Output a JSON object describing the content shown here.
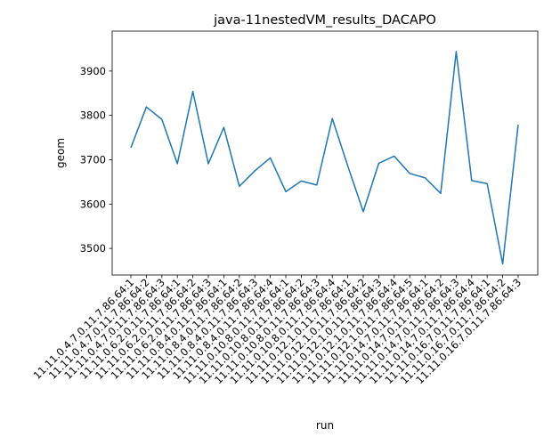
{
  "chart_data": {
    "type": "line",
    "title": "java-11nestedVM_results_DACAPO",
    "xlabel": "run",
    "ylabel": "geom",
    "ylim": [
      3440,
      3990
    ],
    "yticks": [
      3500,
      3600,
      3700,
      3800,
      3900
    ],
    "grid": false,
    "legend": "none",
    "series": [
      {
        "color": "#1f77b4",
        "values": [
          3727,
          3819,
          3791,
          3691,
          3854,
          3691,
          3773,
          3640,
          3675,
          3704,
          3628,
          3652,
          3643,
          3793,
          3686,
          3583,
          3692,
          3708,
          3669,
          3659,
          3624,
          3944,
          3653,
          3646,
          3465,
          3779
        ]
      }
    ],
    "categories": [
      "11.11.0.4.7.0.11.7.86.64:1",
      "11.11.0.4.7.0.11.7.86.64:2",
      "11.11.0.4.7.0.11.7.86.64:3",
      "11.11.0.6.2.0.11.7.86.64:1",
      "11.11.0.6.2.0.11.7.86.64:2",
      "11.11.0.6.2.0.11.7.86.64:3",
      "11.11.0.8.4.0.11.7.86.64:1",
      "11.11.0.8.4.0.11.7.86.64:2",
      "11.11.0.8.4.0.11.7.86.64:3",
      "11.11.0.8.4.0.11.7.86.64:4",
      "11.11.0.10.8.0.11.7.86.64:1",
      "11.11.0.10.8.0.11.7.86.64:2",
      "11.11.0.10.8.0.11.7.86.64:3",
      "11.11.0.10.8.0.11.7.86.64:4",
      "11.11.0.12.1.0.11.7.86.64:1",
      "11.11.0.12.1.0.11.7.86.64:2",
      "11.11.0.12.1.0.11.7.86.64:3",
      "11.11.0.12.1.0.11.7.86.64:4",
      "11.11.0.12.1.0.11.7.86.64:5",
      "11.11.0.14.7.0.11.7.86.64:1",
      "11.11.0.14.7.0.11.7.86.64:2",
      "11.11.0.14.7.0.11.7.86.64:3",
      "11.11.0.14.7.0.11.7.86.64:4",
      "11.11.0.16.7.0.11.7.86.64:1",
      "11.11.0.16.7.0.11.7.86.64:2",
      "11.11.0.16.7.0.11.7.86.64:3"
    ]
  }
}
